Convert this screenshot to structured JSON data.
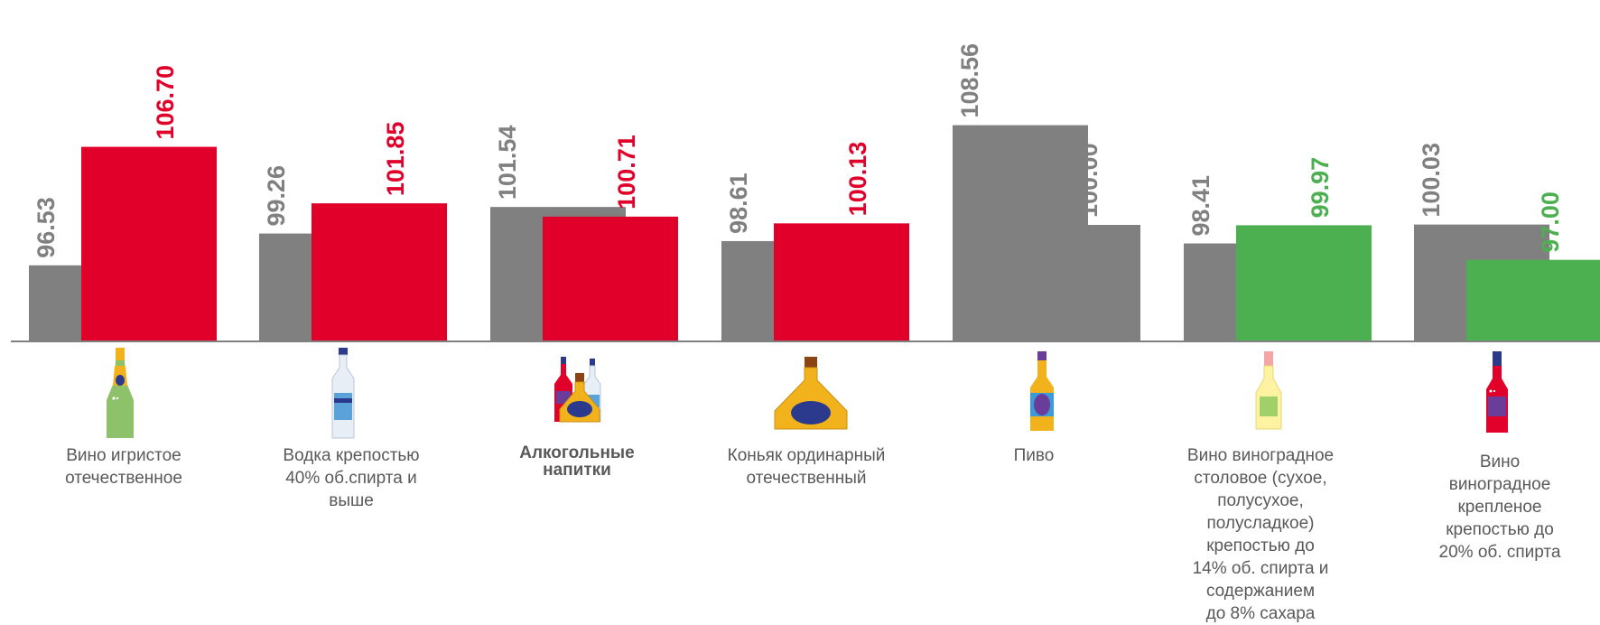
{
  "chart_data": {
    "type": "bar",
    "title": "",
    "xlabel": "",
    "ylabel": "",
    "ylim": [
      90,
      110
    ],
    "grid": false,
    "legend": "none",
    "categories": [
      "Вино игристое\nотечественное",
      "Водка крепостью\n40% об.спирта и\nвыше",
      "Алкогольные\nнапитки",
      "Коньяк ординарный\nотечественный",
      "Пиво",
      "Вино виноградное\nстоловое (сухое,\nполусухое,\nполусладкое)\nкрепостью до\n14% об. спирта и\nсодержанием\nдо 8% сахара",
      "Вино\nвиноградное\nкрепленое\nкрепостью до\n20% об. спирта"
    ],
    "series": [
      {
        "values": [
          96.53,
          99.26,
          101.54,
          98.61,
          108.56,
          98.41,
          100.03
        ],
        "labels": [
          "96.53",
          "99.26",
          "101.54",
          "98.61",
          "108.56",
          "98.41",
          "100.03"
        ],
        "colors": [
          "#808080",
          "#808080",
          "#808080",
          "#808080",
          "#808080",
          "#808080",
          "#808080"
        ]
      },
      {
        "values": [
          106.7,
          101.85,
          100.71,
          100.13,
          100.0,
          99.97,
          97.0
        ],
        "labels": [
          "106.70",
          "101.85",
          "100.71",
          "100.13",
          "100.00",
          "99.97",
          "97.00"
        ],
        "colors": [
          "#e0002a",
          "#e0002a",
          "#e0002a",
          "#e0002a",
          "#808080",
          "#4caf50",
          "#4caf50"
        ]
      }
    ],
    "icons": [
      "champagne-bottle-icon",
      "vodka-bottle-icon",
      "alcohol-bottles-icon",
      "cognac-bottle-icon",
      "beer-bottle-icon",
      "white-wine-bottle-icon",
      "red-wine-bottle-icon"
    ],
    "colors": {
      "grey": "#808080",
      "red": "#e0002a",
      "green": "#4caf50",
      "axis": "#808080"
    }
  }
}
